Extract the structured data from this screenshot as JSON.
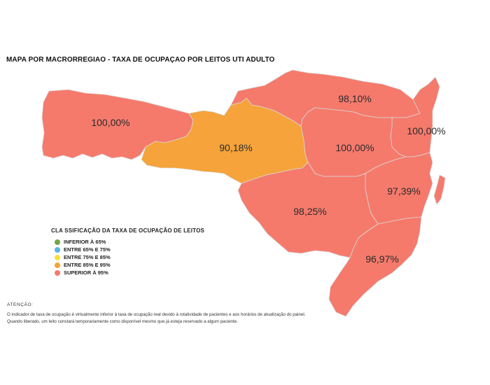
{
  "title": "MAPA POR MACRORREGIAO - TAXA DE OCUPAÇAO POR LEITOS UTI ADULTO",
  "colors": {
    "inferior_65": "#6fa84a",
    "entre_65_75": "#5ab4e8",
    "entre_75_85": "#f6e03a",
    "entre_85_95": "#f5a33a",
    "superior_95": "#f57a6c"
  },
  "regions": [
    {
      "id": "extremo-oeste",
      "label": "100,00%",
      "value": 100.0,
      "color": "#f57a6c"
    },
    {
      "id": "meio-oeste",
      "label": "90,18%",
      "value": 90.18,
      "color": "#f5a33a"
    },
    {
      "id": "planalto-norte",
      "label": "98,10%",
      "value": 98.1,
      "color": "#f57a6c"
    },
    {
      "id": "nordeste",
      "label": "100,00%",
      "value": 100.0,
      "color": "#f57a6c"
    },
    {
      "id": "vale-itajai",
      "label": "100,00%",
      "value": 100.0,
      "color": "#f57a6c"
    },
    {
      "id": "grande-florianopolis",
      "label": "97,39%",
      "value": 97.39,
      "color": "#f57a6c"
    },
    {
      "id": "serra",
      "label": "98,25%",
      "value": 98.25,
      "color": "#f57a6c"
    },
    {
      "id": "sul",
      "label": "96,97%",
      "value": 96.97,
      "color": "#f57a6c"
    }
  ],
  "legend": {
    "title": "CLA SSIFICAÇÃO DA TAXA DE OCUPAÇÃO DE LEITOS",
    "items": [
      {
        "label": "INFERIOR À 65%",
        "color": "#6fa84a"
      },
      {
        "label": "ENTRE 65% E 75%",
        "color": "#5ab4e8"
      },
      {
        "label": "ENTRE 75% E 85%",
        "color": "#f6e03a"
      },
      {
        "label": "ENTRE 85% E 95%",
        "color": "#f5a33a"
      },
      {
        "label": "SUPERIOR À 95%",
        "color": "#f57a6c"
      }
    ]
  },
  "notice": {
    "title": "ATENÇÃO:",
    "lines": [
      "O indicador de taxa de ocupação é virtualmente inferior à taxa de ocupação real devido à rotatividade de pacientes e aos horários de atualização do painel.",
      "Quando liberado, um leito constará temporariamente como disponível mesmo que já esteja reservado a algum paciente."
    ]
  }
}
